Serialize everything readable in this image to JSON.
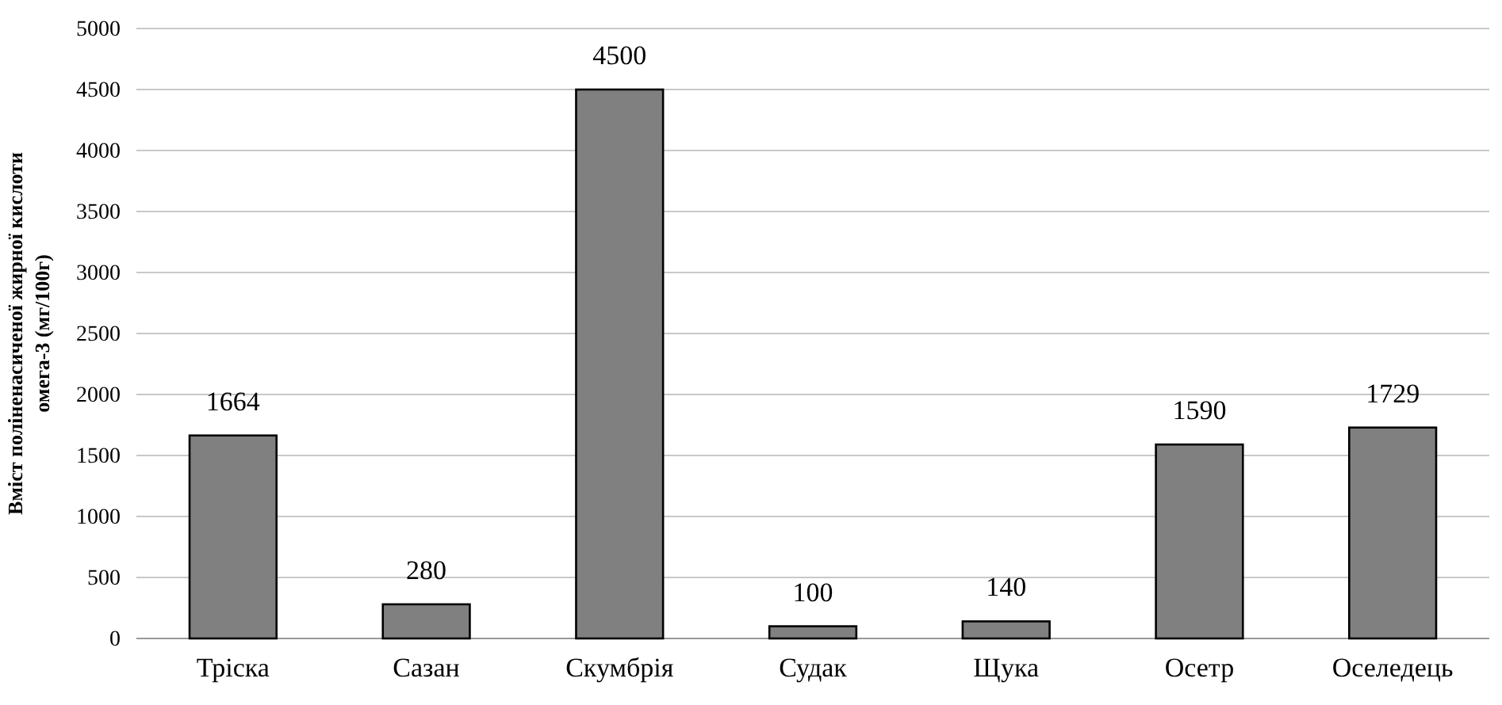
{
  "chart_data": {
    "type": "bar",
    "ylabel": "Вміст  поліненасиченої  жирної кислоти\nомега-3 (мг/100г)",
    "categories": [
      "Тріска",
      "Сазан",
      "Скумбрія",
      "Судак",
      "Щука",
      "Осетр",
      "Оселедець"
    ],
    "values": [
      1664,
      280,
      4500,
      100,
      140,
      1590,
      1729
    ],
    "color": "#808080",
    "ylim": [
      0,
      5000
    ],
    "yticks": [
      0,
      500,
      1000,
      1500,
      2000,
      2500,
      3000,
      3500,
      4000,
      4500,
      5000
    ],
    "grid": "y",
    "data_labels": true
  }
}
